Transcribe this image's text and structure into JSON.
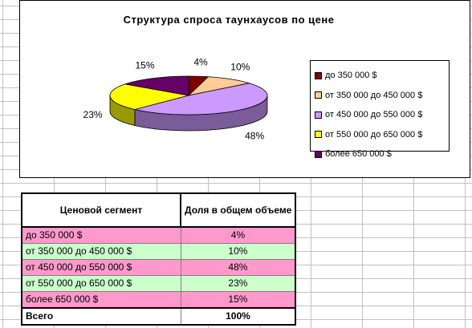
{
  "chart_data": {
    "type": "pie",
    "title": "Структура спроса таунхаусов по цене",
    "categories": [
      "до 350 000 $",
      "от 350 000 до 450 000 $",
      "от 450 000 до 550 000 $",
      "от 550 000 до 650 000 $",
      "более 650 000 $"
    ],
    "values": [
      4,
      10,
      48,
      23,
      15
    ],
    "data_labels": [
      "4%",
      "10%",
      "48%",
      "23%",
      "15%"
    ],
    "colors": [
      "#800000",
      "#ffcc99",
      "#cc99ff",
      "#ffff00",
      "#660066"
    ],
    "legend_position": "right",
    "three_d": true
  },
  "table": {
    "headers": {
      "segment": "Ценовой сегмент",
      "share": "Доля в общем объеме"
    },
    "rows": [
      {
        "segment": "до 350 000 $",
        "share": "4%"
      },
      {
        "segment": "от 350 000 до 450 000 $",
        "share": "10%"
      },
      {
        "segment": "от 450 000 до 550 000 $",
        "share": "48%"
      },
      {
        "segment": "от 550 000 до 650 000 $",
        "share": "23%"
      },
      {
        "segment": "более 650 000 $",
        "share": "15%"
      }
    ],
    "total": {
      "segment": "Всего",
      "share": "100%"
    }
  },
  "colors": {
    "row_odd": "#ff99cc",
    "row_even": "#ccffcc",
    "grid": "#c0c0c0"
  }
}
